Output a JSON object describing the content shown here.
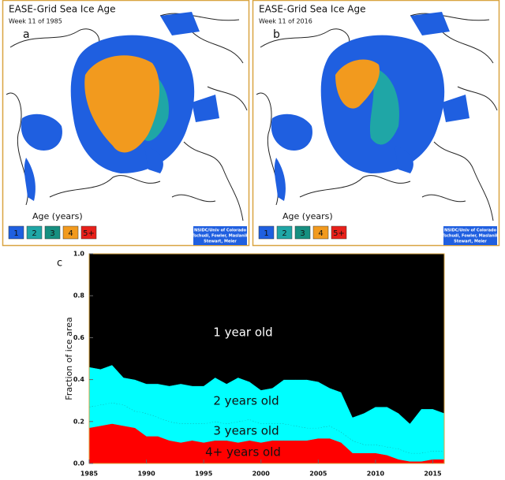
{
  "maps": [
    {
      "title": "EASE-Grid Sea Ice Age",
      "subtitle": "Week 11 of 1985",
      "panel": "a",
      "legend_title": "Age (years)",
      "legend": [
        "1",
        "2",
        "3",
        "4",
        "5+"
      ],
      "credit": [
        "NSIDC/Univ of Colorado",
        "Tschudi, Fowler, Maslanik",
        "Stewart, Meier"
      ]
    },
    {
      "title": "EASE-Grid Sea Ice Age",
      "subtitle": "Week 11 of 2016",
      "panel": "b",
      "legend_title": "Age (years)",
      "legend": [
        "1",
        "2",
        "3",
        "4",
        "5+"
      ],
      "credit": [
        "NSIDC/Univ of Colorado",
        "Tschudi, Fowler, Maslanik",
        "Stewart, Meier"
      ]
    }
  ],
  "chart_data": {
    "type": "stacked_area",
    "panel": "c",
    "ylabel": "Fraction of ice area",
    "x": [
      1985,
      1986,
      1987,
      1988,
      1989,
      1990,
      1991,
      1992,
      1993,
      1994,
      1995,
      1996,
      1997,
      1998,
      1999,
      2000,
      2001,
      2002,
      2003,
      2004,
      2005,
      2006,
      2007,
      2008,
      2009,
      2010,
      2011,
      2012,
      2013,
      2014,
      2015,
      2016
    ],
    "xlim": [
      1985,
      2016
    ],
    "xticks": [
      1985,
      1990,
      1995,
      2000,
      2005,
      2010,
      2015
    ],
    "ylim": [
      0,
      1
    ],
    "yticks": [
      {
        "value": 0,
        "label": "0.0"
      },
      0.2,
      0.4,
      0.6,
      0.8,
      {
        "value": 1,
        "label": "1.0"
      }
    ],
    "series": [
      {
        "name": "4+ years old",
        "color": "#ff0000",
        "values": [
          0.17,
          0.18,
          0.19,
          0.18,
          0.17,
          0.13,
          0.13,
          0.11,
          0.1,
          0.11,
          0.1,
          0.11,
          0.11,
          0.1,
          0.11,
          0.1,
          0.11,
          0.11,
          0.11,
          0.11,
          0.12,
          0.12,
          0.1,
          0.05,
          0.05,
          0.05,
          0.04,
          0.02,
          0.01,
          0.01,
          0.02,
          0.02
        ]
      },
      {
        "name": "3 years old",
        "color": "#00ffff",
        "edge_style": "dotted",
        "values": [
          0.1,
          0.1,
          0.1,
          0.1,
          0.08,
          0.11,
          0.09,
          0.09,
          0.09,
          0.08,
          0.09,
          0.09,
          0.08,
          0.1,
          0.1,
          0.09,
          0.08,
          0.08,
          0.07,
          0.06,
          0.05,
          0.06,
          0.05,
          0.06,
          0.04,
          0.04,
          0.04,
          0.05,
          0.04,
          0.04,
          0.04,
          0.04
        ]
      },
      {
        "name": "2 years old",
        "color": "#00ffff",
        "values": [
          0.19,
          0.17,
          0.18,
          0.13,
          0.15,
          0.14,
          0.16,
          0.17,
          0.19,
          0.18,
          0.18,
          0.21,
          0.19,
          0.21,
          0.18,
          0.16,
          0.17,
          0.21,
          0.22,
          0.23,
          0.22,
          0.18,
          0.19,
          0.11,
          0.15,
          0.18,
          0.19,
          0.17,
          0.14,
          0.21,
          0.2,
          0.18
        ]
      },
      {
        "name": "1 year old",
        "color": "#000000",
        "values": [
          0.54,
          0.55,
          0.53,
          0.59,
          0.6,
          0.62,
          0.62,
          0.63,
          0.62,
          0.63,
          0.63,
          0.59,
          0.62,
          0.59,
          0.61,
          0.65,
          0.64,
          0.6,
          0.6,
          0.6,
          0.61,
          0.64,
          0.66,
          0.78,
          0.76,
          0.73,
          0.73,
          0.76,
          0.81,
          0.74,
          0.74,
          0.76
        ]
      }
    ]
  }
}
